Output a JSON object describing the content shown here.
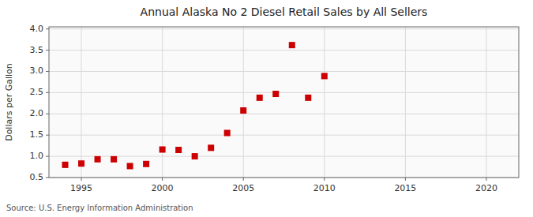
{
  "chart_data": {
    "type": "scatter",
    "title": "Annual Alaska No 2 Diesel Retail Sales by All Sellers",
    "ylabel": "Dollars per Gallon",
    "annotations": [
      "Source: U.S. Energy Information Administration"
    ],
    "x": [
      1994,
      1995,
      1996,
      1997,
      1998,
      1999,
      2000,
      2001,
      2002,
      2003,
      2004,
      2005,
      2006,
      2007,
      2008,
      2009,
      2010
    ],
    "values": [
      0.8,
      0.83,
      0.93,
      0.93,
      0.77,
      0.82,
      1.16,
      1.15,
      1.0,
      1.2,
      1.55,
      2.08,
      2.38,
      2.47,
      3.62,
      2.38,
      2.89
    ],
    "color": "#cc0000",
    "marker": "square",
    "xlim": [
      1993,
      2022
    ],
    "ylim": [
      0.5,
      4.05
    ],
    "xticks": [
      1995,
      2000,
      2005,
      2010,
      2015,
      2020
    ],
    "yticks": [
      0.5,
      {
        "value": 1.0,
        "label": "1.0"
      },
      1.5,
      {
        "value": 2.0,
        "label": "2.0"
      },
      2.5,
      {
        "value": 3.0,
        "label": "3.0"
      },
      3.5,
      {
        "value": 4.0,
        "label": "4.0"
      }
    ],
    "grid": true
  }
}
